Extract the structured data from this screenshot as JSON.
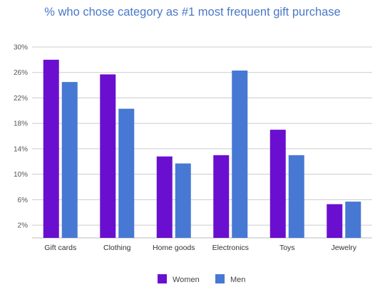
{
  "chart_data": {
    "type": "bar",
    "title": "% who chose category as #1 most frequent gift purchase",
    "xlabel": "",
    "ylabel": "",
    "categories": [
      "Gift cards",
      "Clothing",
      "Home goods",
      "Electronics",
      "Toys",
      "Jewelry"
    ],
    "series": [
      {
        "name": "Women",
        "color": "#6a0fcf",
        "values": [
          28.0,
          25.7,
          12.8,
          13.0,
          17.0,
          5.3
        ]
      },
      {
        "name": "Men",
        "color": "#4778d3",
        "values": [
          24.5,
          20.3,
          11.7,
          26.3,
          13.0,
          5.7
        ]
      }
    ],
    "ylim": [
      0,
      30
    ],
    "yticks": [
      2,
      6,
      10,
      14,
      18,
      22,
      26,
      30
    ],
    "ytick_labels": [
      "2%",
      "6%",
      "10%",
      "14%",
      "18%",
      "22%",
      "26%",
      "30%"
    ],
    "grid": true,
    "legend_position": "bottom"
  }
}
